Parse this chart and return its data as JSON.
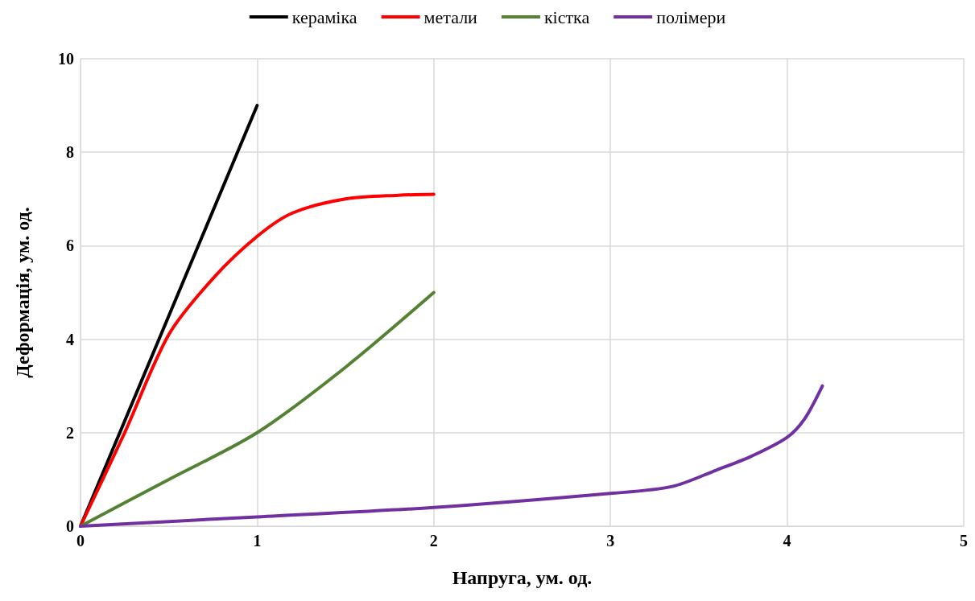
{
  "chart_data": {
    "type": "line",
    "xlabel": "Напруга, ум. од.",
    "ylabel": "Деформація, ум. од.",
    "xlim": [
      0,
      5
    ],
    "xticks": [
      0,
      1,
      2,
      3,
      4,
      5
    ],
    "ylim": [
      0,
      10
    ],
    "yticks": [
      0,
      2,
      4,
      6,
      8,
      10
    ],
    "grid": true,
    "legend": "top",
    "marker": "none",
    "line_style": "solid",
    "series": [
      {
        "name": "кераміка",
        "color": "#000000",
        "x": [
          0,
          1
        ],
        "values": [
          0,
          9
        ]
      },
      {
        "name": "метали",
        "color": "#ff0000",
        "x": [
          0,
          0.25,
          0.5,
          0.75,
          1,
          1.2,
          1.5,
          1.8,
          2
        ],
        "values": [
          0,
          2,
          4.1,
          5.3,
          6.2,
          6.7,
          7.0,
          7.08,
          7.1
        ]
      },
      {
        "name": "кістка",
        "color": "#548235",
        "x": [
          0,
          0.5,
          1,
          1.5,
          2
        ],
        "values": [
          0,
          1,
          2,
          3.4,
          5
        ]
      },
      {
        "name": "полімери",
        "color": "#7030a0",
        "x": [
          0,
          1,
          2,
          3,
          3.35,
          3.6,
          3.8,
          4,
          4.1,
          4.2
        ],
        "values": [
          0,
          0.2,
          0.4,
          0.7,
          0.85,
          1.2,
          1.5,
          1.9,
          2.3,
          3
        ]
      }
    ]
  }
}
